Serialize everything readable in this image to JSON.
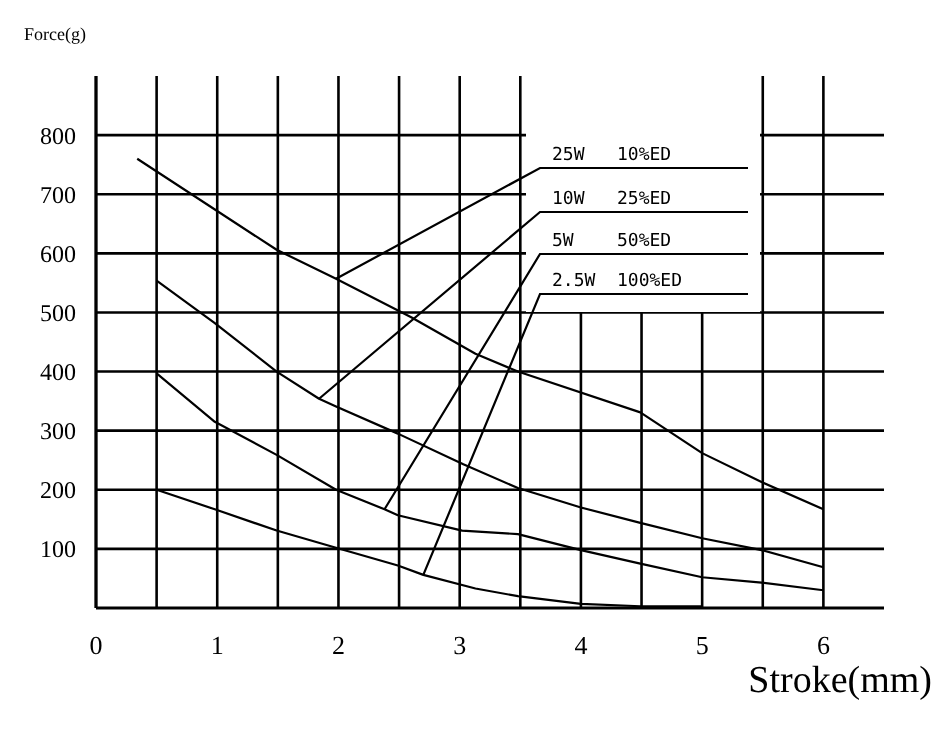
{
  "chart_data": {
    "type": "line",
    "xlabel": "Stroke(mm)",
    "ylabel": "Force(g)",
    "xlim": [
      0,
      6.5
    ],
    "ylim": [
      0,
      900
    ],
    "xticks": [
      0,
      {
        "value": 0.5,
        "label": null
      },
      1,
      {
        "value": 1.5,
        "label": null
      },
      2,
      {
        "value": 2.5,
        "label": null
      },
      3,
      {
        "value": 3.5,
        "label": null
      },
      4,
      {
        "value": 4.5,
        "label": null
      },
      5,
      {
        "value": 5.5,
        "label": null
      },
      6
    ],
    "yticks": [
      100,
      200,
      300,
      400,
      500,
      600,
      700,
      800
    ],
    "grid": true,
    "marker": "none",
    "line_style": "solid",
    "annotations": [
      {
        "text": "25W   10%ED",
        "x": 1.98,
        "y": 557
      },
      {
        "text": "10W   25%ED",
        "x": 1.84,
        "y": 354
      },
      {
        "text": "5W    50%ED",
        "x": 2.38,
        "y": 167
      },
      {
        "text": "2.5W  100%ED",
        "x": 2.7,
        "y": 56
      }
    ],
    "series": [
      {
        "color": "#000000",
        "x": [
          0.34,
          1.49,
          1.98,
          2.6,
          3.13,
          3.48,
          4.49,
          5,
          5.49,
          6
        ],
        "values": [
          760,
          606,
          557,
          492,
          430,
          400,
          331,
          262,
          213,
          167
        ]
      },
      {
        "color": "#000000",
        "x": [
          0.5,
          0.98,
          1.49,
          1.84,
          1.98,
          2.49,
          3.03,
          3.48,
          4,
          4.49,
          5,
          5.49,
          6
        ],
        "values": [
          554,
          482,
          400,
          354,
          341,
          295,
          243,
          203,
          170,
          144,
          118,
          98,
          69
        ]
      },
      {
        "color": "#000000",
        "x": [
          0.5,
          0.98,
          1.49,
          1.98,
          2.38,
          2.49,
          3.02,
          3.48,
          4,
          4.49,
          5,
          5.49,
          6
        ],
        "values": [
          397,
          315,
          259,
          200,
          167,
          157,
          131,
          125,
          98,
          75,
          52,
          43,
          30
        ]
      },
      {
        "color": "#000000",
        "x": [
          0.5,
          0.98,
          1.49,
          1.98,
          2.49,
          2.7,
          3.13,
          3.48,
          4,
          4.49,
          5
        ],
        "values": [
          200,
          167,
          131,
          102,
          72,
          56,
          33,
          20,
          7,
          3,
          3
        ]
      }
    ]
  }
}
